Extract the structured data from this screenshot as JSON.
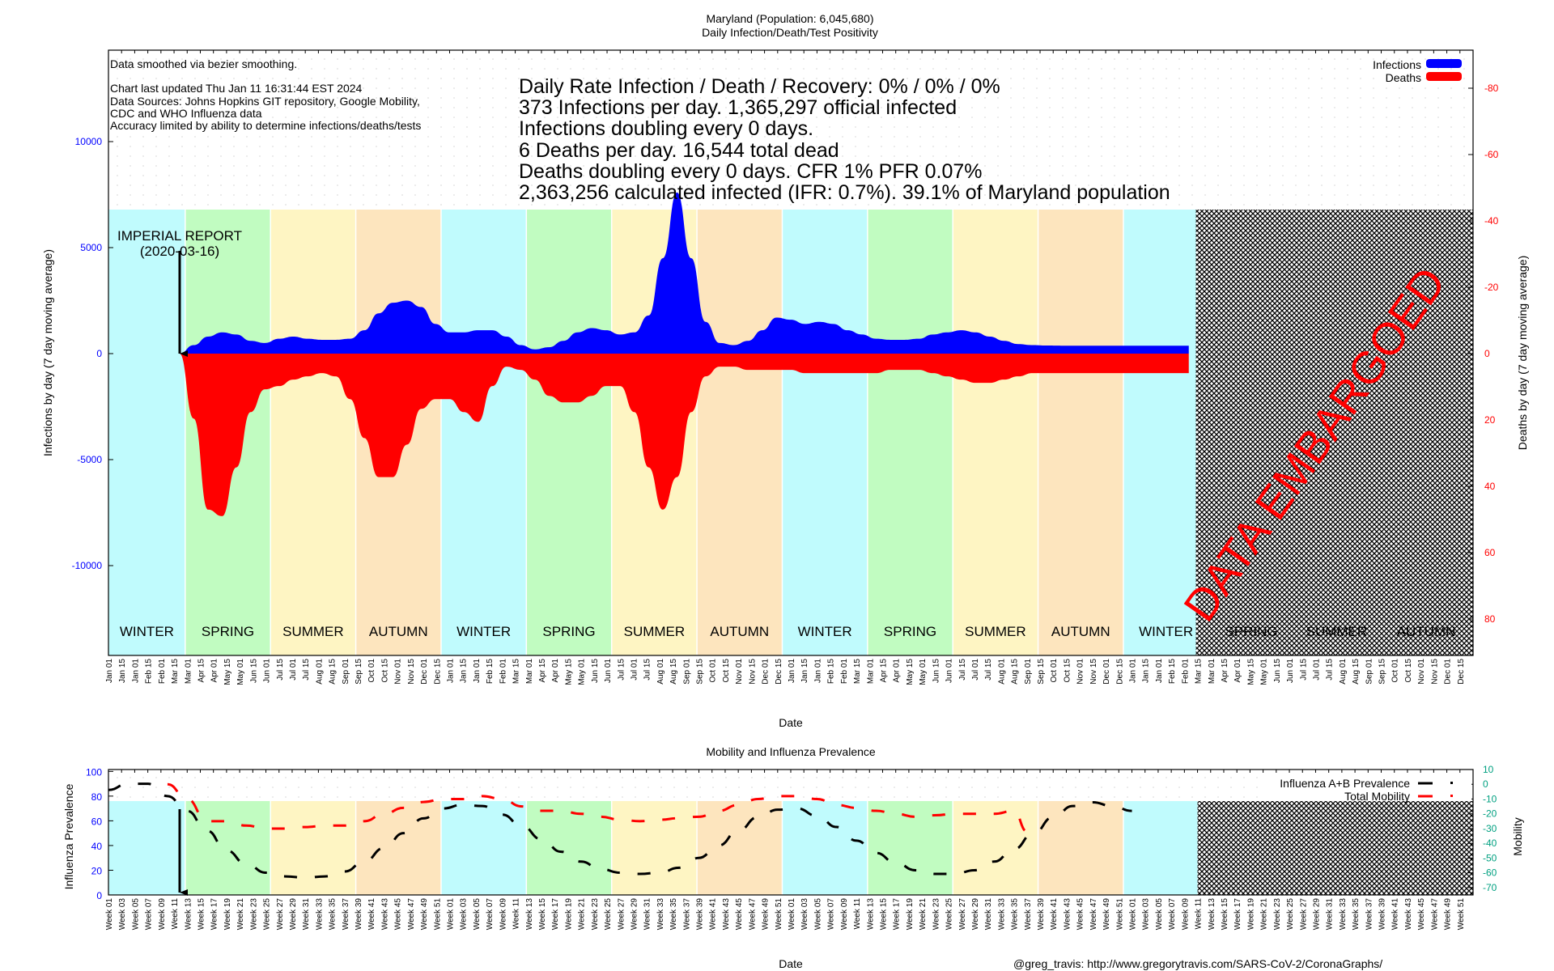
{
  "header": {
    "title": "Maryland (Population: 6,045,680)",
    "subtitle": "Daily Infection/Death/Test Positivity"
  },
  "notes": [
    "Data smoothed via bezier smoothing.",
    "",
    "Chart last updated Thu Jan 11 16:31:44 EST 2024",
    "Data Sources: Johns Hopkins GIT repository, Google Mobility,",
    "CDC and WHO Influenza data",
    "Accuracy limited by ability to determine infections/deaths/tests"
  ],
  "stats": [
    "Daily Rate Infection / Death / Recovery: 0% / 0% / 0%",
    "373 Infections per day.  1,365,297 official infected",
    "Infections doubling every 0 days.",
    "6 Deaths per day.  16,544 total dead",
    "Deaths doubling every 0 days.  CFR 1%  PFR 0.07%",
    "2,363,256 calculated infected (IFR: 0.7%).  39.1% of Maryland population"
  ],
  "annotation": {
    "line1": "IMPERIAL REPORT",
    "line2": "(2020-03-16)"
  },
  "embargo_label": "DATA EMBARGOED",
  "footer": "@greg_travis: http://www.gregorytravis.com/SARS-CoV-2/CoronaGraphs/",
  "colors": {
    "infections": "#0000ff",
    "deaths": "#ff0000",
    "winter": "#c0fbfd",
    "spring": "#c1fcc1",
    "summer": "#fef5c3",
    "autumn": "#fde5be",
    "left_axis": "#0000ff",
    "right_axis": "#ff0000",
    "mobility_axis": "#00a080"
  },
  "chart_data": [
    {
      "type": "area",
      "title": "Daily Infection/Death/Test Positivity",
      "xlabel": "Date",
      "ylabel": "Infections by day (7 day moving average)",
      "y2label": "Deaths by day (7 day moving average)",
      "ylim": [
        -14000,
        14000
      ],
      "y2lim": [
        -90,
        90
      ],
      "yticks": [
        "10000",
        "5000",
        "0",
        "-5000",
        "-10000"
      ],
      "y2ticks": [
        "-80",
        "-60",
        "-40",
        "-20",
        "0",
        "20",
        "40",
        "60",
        "80"
      ],
      "legend": [
        "Infections",
        "Deaths"
      ],
      "legend_position": "top-right",
      "seasons": [
        "WINTER",
        "SPRING",
        "SUMMER",
        "AUTUMN",
        "WINTER",
        "SPRING",
        "SUMMER",
        "AUTUMN",
        "WINTER",
        "SPRING",
        "SUMMER",
        "AUTUMN",
        "WINTER",
        "SPRING",
        "SUMMER",
        "AUTUMN"
      ],
      "x_months": [
        "2020-01",
        "2020-02",
        "2020-03",
        "2020-04",
        "2020-05",
        "2020-06",
        "2020-07",
        "2020-08",
        "2020-09",
        "2020-10",
        "2020-11",
        "2020-12",
        "2021-01",
        "2021-02",
        "2021-03",
        "2021-04",
        "2021-05",
        "2021-06",
        "2021-07",
        "2021-08",
        "2021-09",
        "2021-10",
        "2021-11",
        "2021-12",
        "2022-01",
        "2022-02",
        "2022-03",
        "2022-04",
        "2022-05",
        "2022-06",
        "2022-07",
        "2022-08",
        "2022-09",
        "2022-10",
        "2022-11",
        "2022-12",
        "2023-01",
        "2023-02",
        "2023-03"
      ],
      "series": [
        {
          "name": "Infections",
          "x_month_index": [
            2.5,
            3,
            3.5,
            4,
            4.5,
            5,
            5.5,
            6,
            6.5,
            7,
            7.5,
            8,
            8.5,
            9,
            9.5,
            10,
            10.5,
            11,
            11.5,
            12,
            12.5,
            13,
            13.5,
            14,
            14.5,
            15,
            15.5,
            16,
            16.5,
            17,
            17.5,
            18,
            18.5,
            19,
            19.5,
            20,
            20.5,
            21,
            21.5,
            22,
            22.5,
            23,
            23.5,
            24,
            24.5,
            25,
            25.5,
            26,
            26.5,
            27,
            27.5,
            28,
            28.5,
            29,
            29.5,
            30,
            30.5,
            31,
            31.5,
            32,
            32.5,
            33,
            33.5,
            34,
            34.5,
            35,
            35.5,
            36,
            36.5,
            37,
            37.5,
            38
          ],
          "values": [
            0,
            400,
            800,
            1000,
            900,
            600,
            500,
            700,
            800,
            700,
            650,
            650,
            700,
            1100,
            1900,
            2400,
            2500,
            2200,
            1400,
            1000,
            1000,
            1100,
            1100,
            800,
            400,
            200,
            300,
            600,
            1000,
            1200,
            1100,
            900,
            1000,
            1800,
            4500,
            7600,
            4500,
            1500,
            500,
            400,
            600,
            1100,
            1700,
            1600,
            1400,
            1500,
            1400,
            1100,
            900,
            700,
            650,
            650,
            700,
            900,
            1000,
            1100,
            1000,
            800,
            600,
            450,
            400,
            380,
            373,
            373,
            373,
            373,
            373,
            373,
            373,
            373,
            373,
            373
          ]
        },
        {
          "name": "Deaths",
          "x_month_index": [
            2.5,
            3,
            3.5,
            4,
            4.5,
            5,
            5.5,
            6,
            6.5,
            7,
            7.5,
            8,
            8.5,
            9,
            9.5,
            10,
            10.5,
            11,
            11.5,
            12,
            12.5,
            13,
            13.5,
            14,
            14.5,
            15,
            15.5,
            16,
            16.5,
            17,
            17.5,
            18,
            18.5,
            19,
            19.5,
            20,
            20.5,
            21,
            21.5,
            22,
            22.5,
            23,
            23.5,
            24,
            24.5,
            25,
            25.5,
            26,
            26.5,
            27,
            27.5,
            28,
            28.5,
            29,
            29.5,
            30,
            30.5,
            31,
            31.5,
            32,
            32.5,
            33,
            33.5,
            34,
            34.5,
            35,
            35.5,
            36,
            36.5,
            37,
            37.5,
            38
          ],
          "values": [
            0,
            20,
            48,
            50,
            35,
            18,
            11,
            10,
            8,
            7,
            6,
            7,
            14,
            26,
            38,
            38,
            28,
            17,
            14,
            14,
            18,
            21,
            10,
            4,
            5,
            8,
            13,
            15,
            15,
            13,
            10,
            10,
            18,
            35,
            48,
            38,
            18,
            7,
            4,
            4,
            5,
            5,
            5,
            5,
            6,
            6,
            6,
            6,
            6,
            6,
            5,
            5,
            5,
            6,
            7,
            8,
            9,
            9,
            8,
            7,
            6,
            6,
            6,
            6,
            6,
            6,
            6,
            6,
            6,
            6,
            6,
            6
          ]
        }
      ],
      "embargoed_from": "2023-03",
      "annotation": {
        "label": "IMPERIAL REPORT (2020-03-16)",
        "x": "2020-03-16"
      }
    },
    {
      "type": "line",
      "title": "Mobility and Influenza Prevalence",
      "xlabel": "Date",
      "ylabel": "Influenza Prevalence",
      "y2label": "Mobility",
      "ylim": [
        0,
        100
      ],
      "y2lim": [
        -75,
        10
      ],
      "yticks": [
        "100",
        "80",
        "60",
        "40",
        "20",
        "0"
      ],
      "y2ticks": [
        "10",
        "0",
        "-10",
        "-20",
        "-30",
        "-40",
        "-50",
        "-60",
        "-70"
      ],
      "legend": [
        "Influenza A+B Prevalence",
        "Total Mobility"
      ],
      "legend_position": "top-right",
      "x_weeks_per_year": 52,
      "series": [
        {
          "name": "Influenza A+B Prevalence",
          "week_index": [
            0,
            3,
            6,
            9,
            12,
            15,
            18,
            21,
            24,
            27,
            30,
            33,
            36,
            39,
            42,
            45,
            48,
            51,
            54,
            57,
            60,
            63,
            66,
            69,
            72,
            75,
            78,
            81,
            84,
            87,
            90,
            93,
            96,
            99,
            102,
            105,
            108,
            111,
            114,
            117,
            120,
            123,
            126,
            129,
            132,
            135,
            138,
            141,
            144,
            147,
            150,
            153,
            156,
            159,
            162
          ],
          "values": [
            85,
            90,
            90,
            80,
            68,
            52,
            36,
            25,
            18,
            15,
            14,
            15,
            19,
            27,
            38,
            50,
            62,
            70,
            73,
            72,
            65,
            56,
            45,
            35,
            27,
            21,
            18,
            17,
            18,
            22,
            30,
            40,
            52,
            63,
            69,
            70,
            64,
            55,
            44,
            34,
            26,
            20,
            17,
            17,
            20,
            27,
            37,
            50,
            63,
            72,
            75,
            72,
            68,
            null,
            null
          ]
        },
        {
          "name": "Total Mobility",
          "week_index": [
            9,
            12,
            15,
            18,
            21,
            24,
            27,
            30,
            33,
            36,
            39,
            42,
            45,
            48,
            51,
            54,
            57,
            60,
            63,
            66,
            69,
            72,
            75,
            78,
            81,
            84,
            87,
            90,
            93,
            96,
            99,
            102,
            105,
            108,
            111,
            114,
            117,
            120,
            123,
            126,
            129,
            132,
            135,
            138,
            140
          ],
          "values": [
            0,
            -10,
            -25,
            -25,
            -28,
            -30,
            -30,
            -29,
            -28,
            -28,
            -25,
            -20,
            -16,
            -12,
            -10,
            -10,
            -8,
            -10,
            -15,
            -18,
            -18,
            -20,
            -22,
            -24,
            -25,
            -24,
            -23,
            -22,
            -18,
            -14,
            -10,
            -8,
            -8,
            -10,
            -14,
            -16,
            -18,
            -20,
            -22,
            -21,
            -20,
            -20,
            -20,
            -18,
            -32
          ]
        }
      ],
      "embargoed_from_week": 166
    }
  ]
}
